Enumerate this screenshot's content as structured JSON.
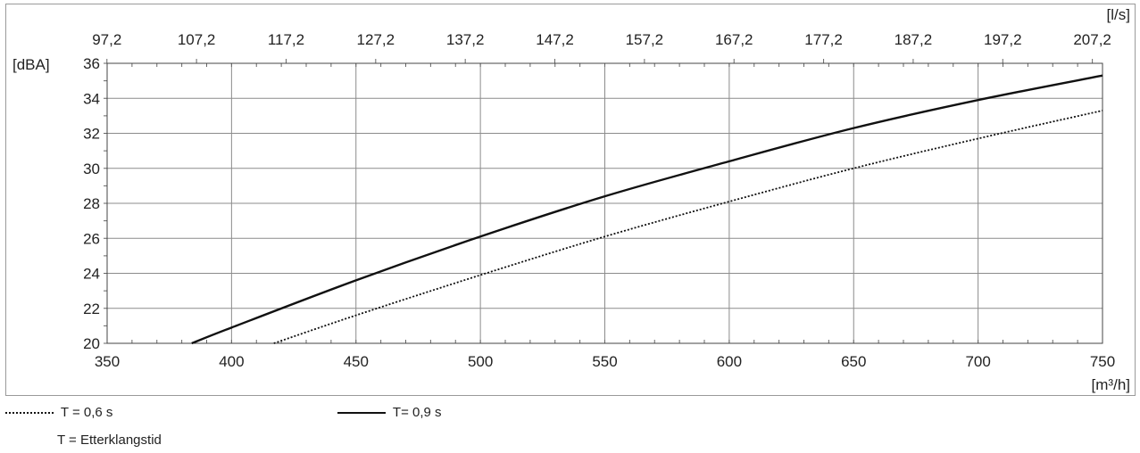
{
  "chart_data": {
    "type": "line",
    "y_unit": "[dBA]",
    "x_unit": "[m³/h]",
    "x2_unit": "[l/s]",
    "xlim": [
      350,
      750
    ],
    "ylim": [
      20,
      36
    ],
    "x_ticks": [
      "350",
      "400",
      "450",
      "500",
      "550",
      "600",
      "650",
      "700",
      "750"
    ],
    "y_ticks": [
      "20",
      "22",
      "24",
      "26",
      "28",
      "30",
      "32",
      "34",
      "36"
    ],
    "x2_ticks": [
      "97,2",
      "107,2",
      "117,2",
      "127,2",
      "137,2",
      "147,2",
      "157,2",
      "167,2",
      "177,2",
      "187,2",
      "197,2",
      "207,2"
    ],
    "grid": true,
    "series": [
      {
        "name": "T = 0,6 s",
        "style": "dotted",
        "x": [
          417,
          450,
          500,
          550,
          600,
          650,
          700,
          750
        ],
        "y": [
          20.0,
          21.6,
          23.9,
          26.1,
          28.1,
          30.0,
          31.7,
          33.3
        ]
      },
      {
        "name": "T= 0,9 s",
        "style": "solid",
        "x": [
          384,
          400,
          450,
          500,
          550,
          600,
          650,
          700,
          750
        ],
        "y": [
          20.0,
          20.9,
          23.6,
          26.1,
          28.4,
          30.4,
          32.3,
          33.9,
          35.3
        ]
      }
    ]
  },
  "legend": {
    "dotted_label": "T = 0,6 s",
    "solid_label": "T= 0,9 s",
    "note": "T = Etterklangstid"
  }
}
